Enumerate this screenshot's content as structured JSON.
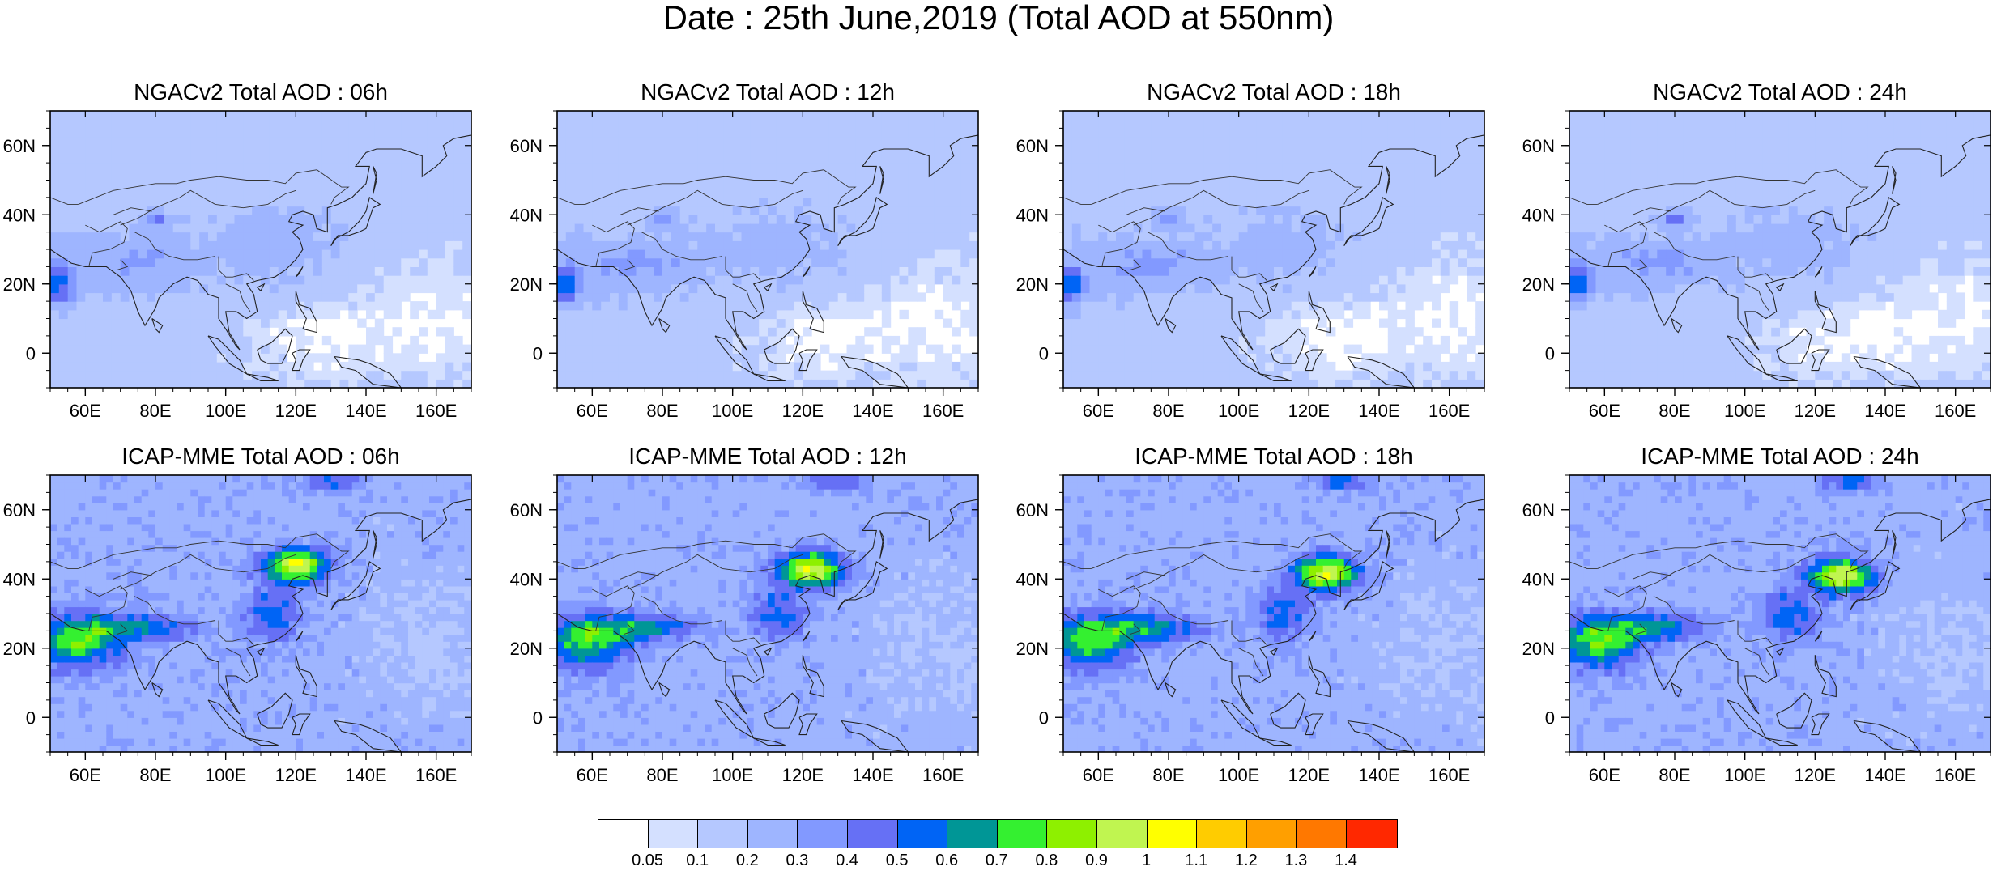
{
  "title": "Date : 25th June,2019 (Total AOD at 550nm)",
  "panels": [
    {
      "title": "NGACv2 Total AOD : 06h",
      "model": "NGACv2",
      "hour": "06h"
    },
    {
      "title": "NGACv2 Total AOD : 12h",
      "model": "NGACv2",
      "hour": "12h"
    },
    {
      "title": "NGACv2 Total AOD : 18h",
      "model": "NGACv2",
      "hour": "18h"
    },
    {
      "title": "NGACv2 Total AOD : 24h",
      "model": "NGACv2",
      "hour": "24h"
    },
    {
      "title": "ICAP-MME Total AOD : 06h",
      "model": "ICAP-MME",
      "hour": "06h"
    },
    {
      "title": "ICAP-MME Total AOD : 12h",
      "model": "ICAP-MME",
      "hour": "12h"
    },
    {
      "title": "ICAP-MME Total AOD : 18h",
      "model": "ICAP-MME",
      "hour": "18h"
    },
    {
      "title": "ICAP-MME Total AOD : 24h",
      "model": "ICAP-MME",
      "hour": "24h"
    }
  ],
  "lat_ticks": [
    "60N",
    "40N",
    "20N",
    "0"
  ],
  "lon_ticks": [
    "60E",
    "80E",
    "100E",
    "120E",
    "140E",
    "160E"
  ],
  "colorbar": {
    "colors": [
      "#ffffff",
      "#d4e0ff",
      "#b5c8ff",
      "#9eb5ff",
      "#8299ff",
      "#6670f5",
      "#0064f5",
      "#009696",
      "#34f030",
      "#8ef000",
      "#c0f550",
      "#ffff00",
      "#ffcc00",
      "#ff9f00",
      "#ff7800",
      "#ff2800"
    ],
    "labels": [
      "0.05",
      "0.1",
      "0.2",
      "0.3",
      "0.4",
      "0.5",
      "0.6",
      "0.7",
      "0.8",
      "0.9",
      "1",
      "1.1",
      "1.2",
      "1.3",
      "1.4"
    ]
  }
}
